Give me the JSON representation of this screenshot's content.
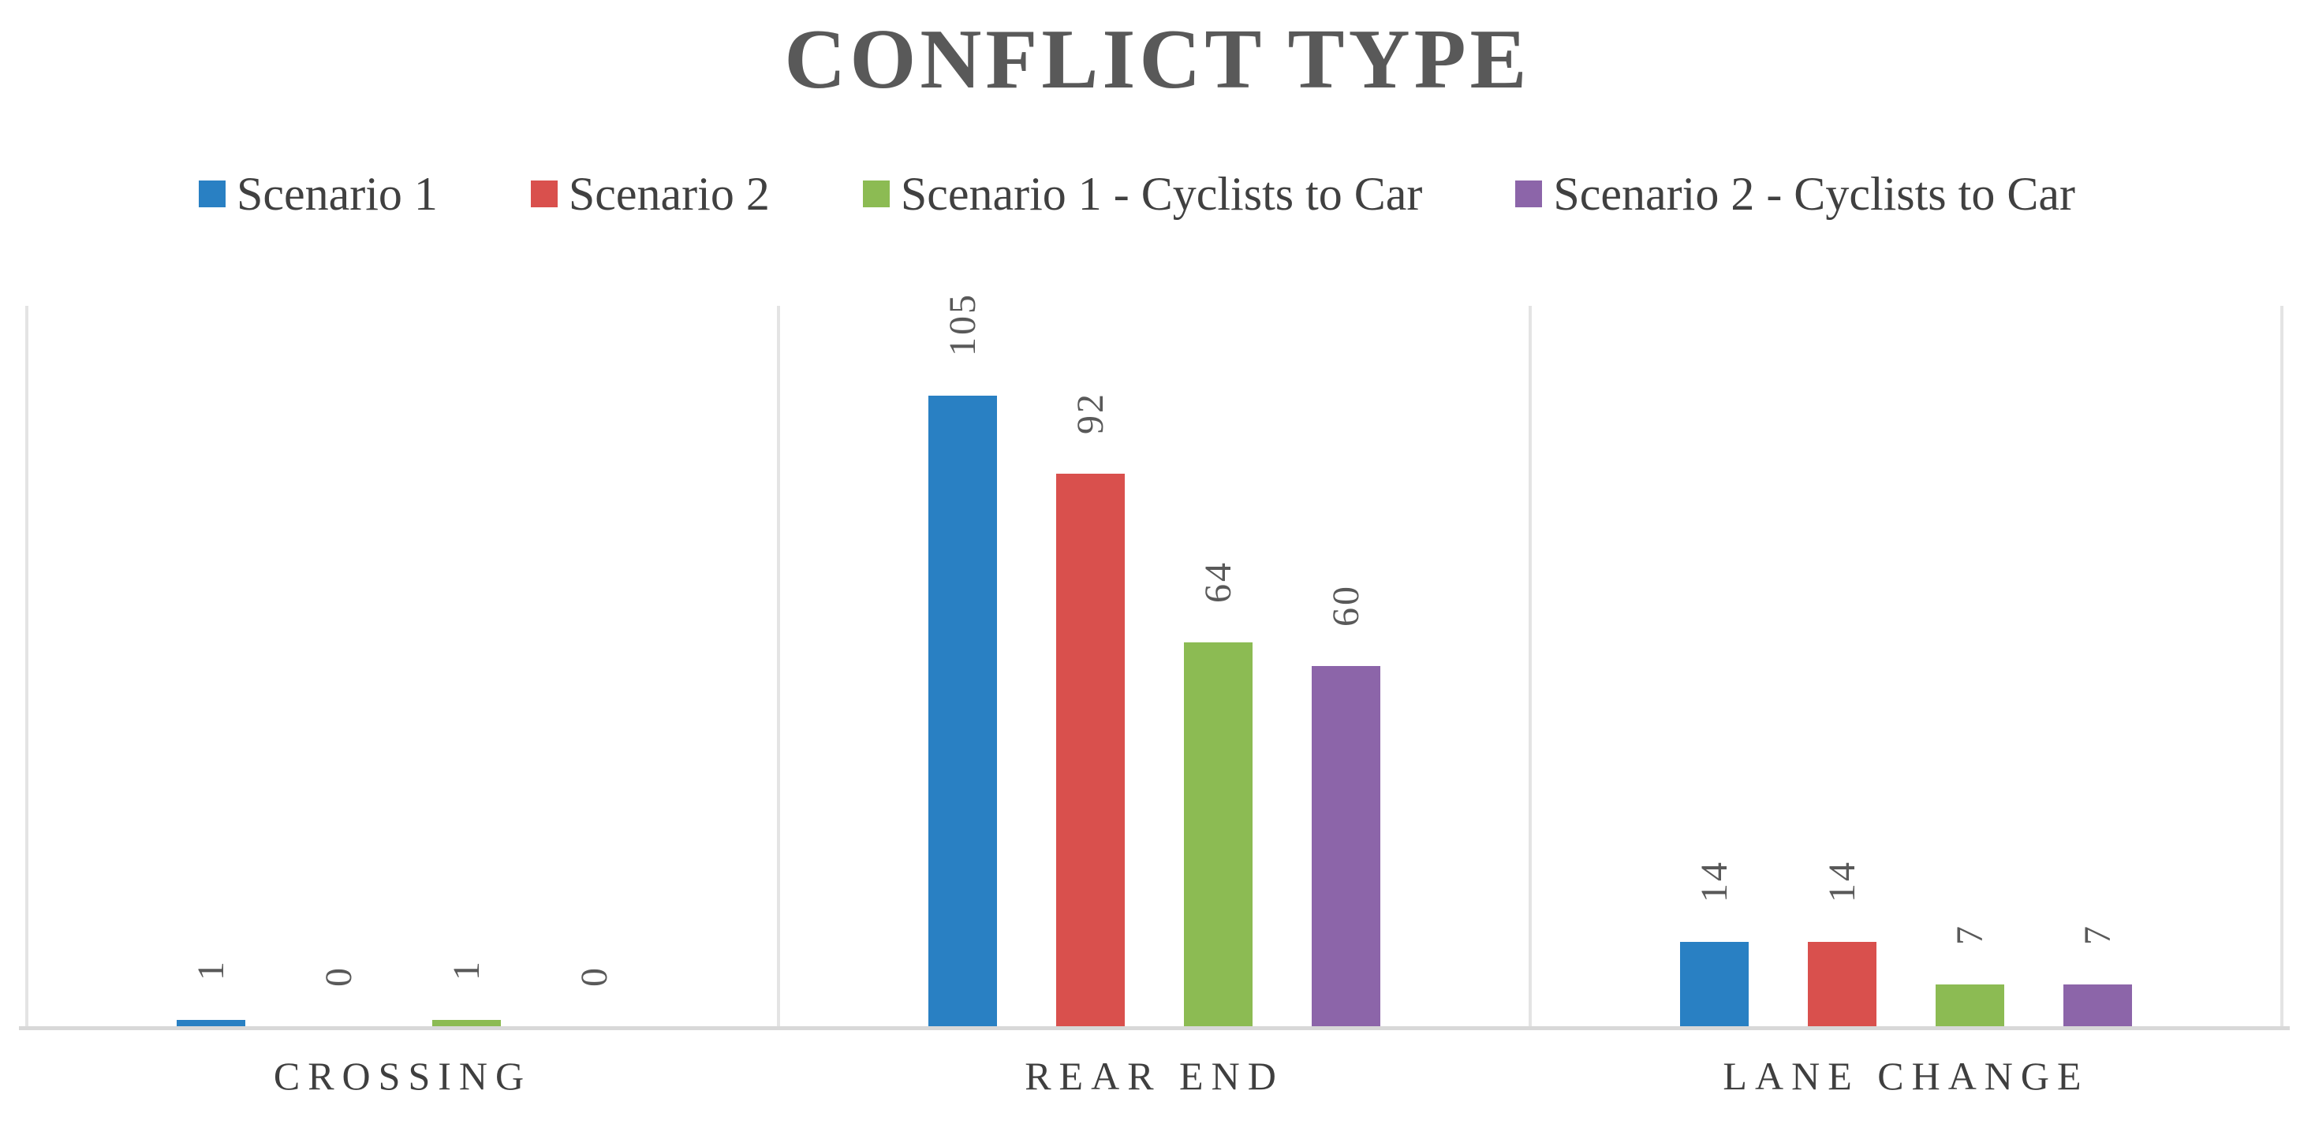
{
  "chart_data": {
    "type": "bar",
    "title": "CONFLICT TYPE",
    "categories": [
      "CROSSING",
      "REAR END",
      "LANE CHANGE"
    ],
    "series": [
      {
        "name": "Scenario 1",
        "color": "#2980C3",
        "values": [
          1,
          105,
          14
        ]
      },
      {
        "name": "Scenario 2",
        "color": "#D9504D",
        "values": [
          0,
          92,
          14
        ]
      },
      {
        "name": "Scenario 1 - Cyclists to Car",
        "color": "#8CBB53",
        "values": [
          1,
          64,
          7
        ]
      },
      {
        "name": "Scenario 2 - Cyclists to Car",
        "color": "#8C65A9",
        "values": [
          0,
          60,
          7
        ]
      }
    ],
    "ylim": [
      0,
      120
    ],
    "y_axis_visible": false,
    "grid": "vertical-category-separators",
    "legend_position": "top-left",
    "data_labels": "rotated-90-outside-end",
    "colors": {
      "title_text": "#595959",
      "legend_text": "#404040",
      "value_label_text": "#595959",
      "category_text": "#3f3f3f",
      "axis_line": "#D8D8D8",
      "separator_line": "#E4E4E4",
      "background": "#ffffff"
    }
  }
}
